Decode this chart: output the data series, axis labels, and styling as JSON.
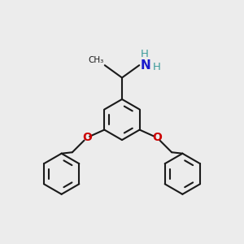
{
  "bg_color": "#ececec",
  "bond_color": "#1a1a1a",
  "oxygen_color": "#cc0000",
  "nitrogen_color": "#1a1acc",
  "nitrogen_h_color": "#3d9b9b",
  "lw": 1.5,
  "xlim": [
    0,
    10
  ],
  "ylim": [
    0,
    10
  ],
  "ring_r": 0.85
}
